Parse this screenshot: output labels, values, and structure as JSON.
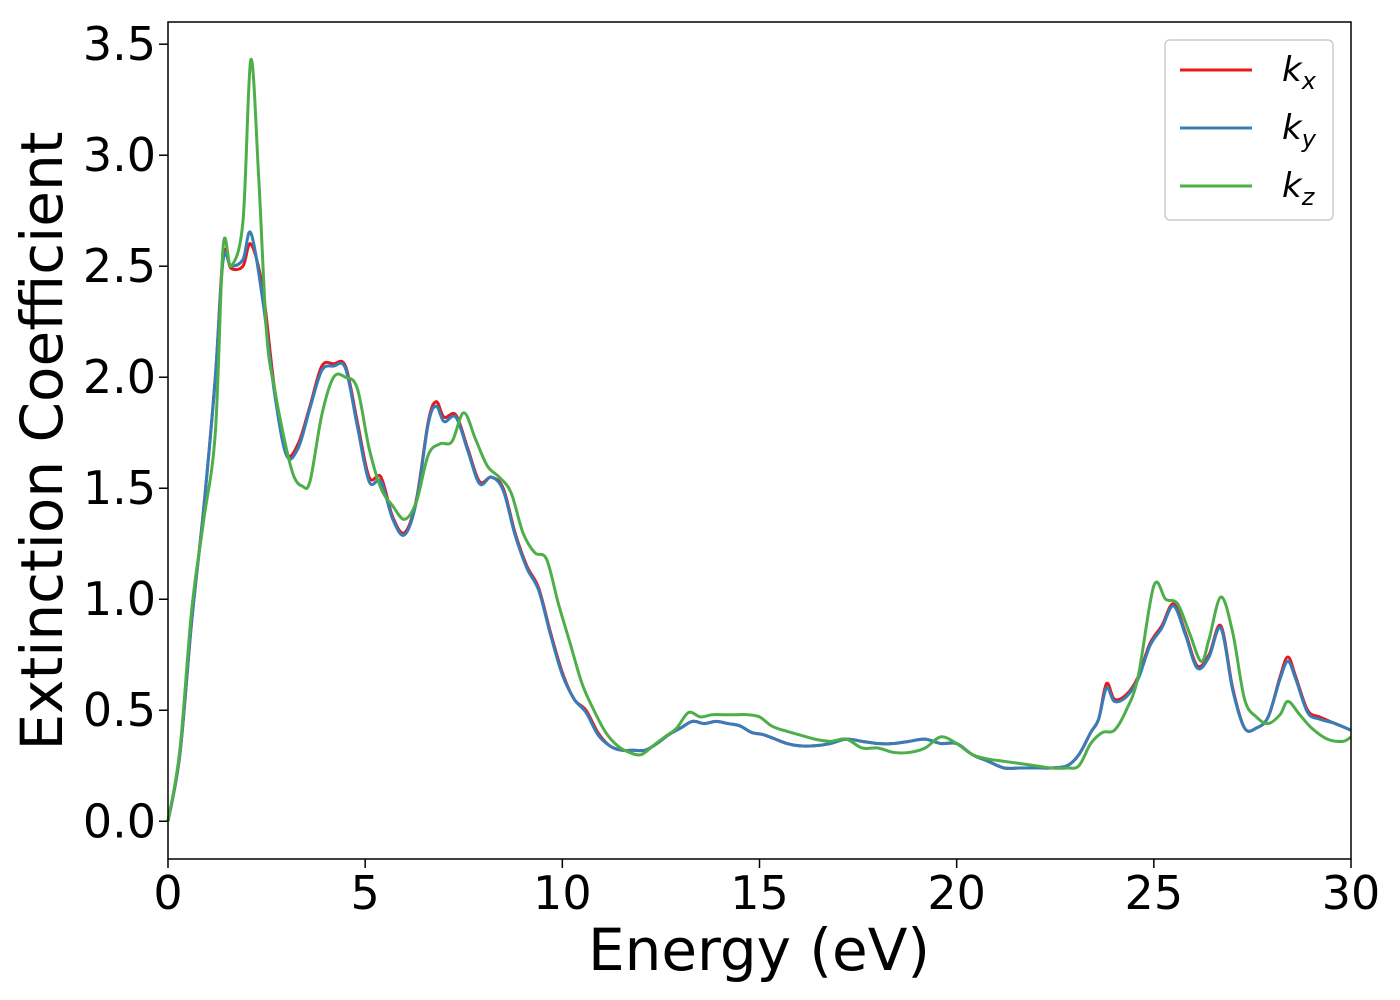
{
  "chart_data": {
    "type": "line",
    "xlabel": "Energy (eV)",
    "ylabel": "Extinction Coefficient",
    "xlim": [
      0,
      30
    ],
    "ylim": [
      -0.17,
      3.6
    ],
    "xticks": [
      "0",
      "5",
      "10",
      "15",
      "20",
      "25",
      "30"
    ],
    "yticks": [
      "0.0",
      "0.5",
      "1.0",
      "1.5",
      "2.0",
      "2.5",
      "3.0",
      "3.5"
    ],
    "grid": false,
    "legend_position": "top-right",
    "series": [
      {
        "name": "k",
        "subscript": "x",
        "color": "#e41a1c",
        "x": [
          0,
          0.3,
          0.6,
          0.9,
          1.2,
          1.4,
          1.6,
          1.9,
          2.1,
          2.4,
          2.7,
          3.0,
          3.3,
          3.6,
          3.9,
          4.2,
          4.5,
          4.8,
          5.1,
          5.4,
          5.7,
          6.0,
          6.3,
          6.6,
          6.8,
          7.0,
          7.3,
          7.6,
          7.9,
          8.2,
          8.5,
          8.8,
          9.1,
          9.4,
          9.7,
          10.0,
          10.3,
          10.6,
          10.9,
          11.2,
          11.5,
          11.8,
          12.1,
          12.4,
          12.7,
          13.0,
          13.3,
          13.6,
          13.9,
          14.2,
          14.5,
          14.8,
          15.1,
          15.4,
          15.7,
          16.0,
          16.4,
          16.8,
          17.2,
          17.6,
          18.0,
          18.4,
          18.8,
          19.2,
          19.6,
          20.0,
          20.4,
          20.8,
          21.2,
          21.6,
          22.0,
          22.4,
          22.8,
          23.1,
          23.4,
          23.6,
          23.8,
          24.0,
          24.3,
          24.6,
          24.9,
          25.2,
          25.5,
          25.8,
          26.1,
          26.4,
          26.7,
          27.0,
          27.3,
          27.6,
          27.9,
          28.2,
          28.4,
          28.6,
          28.9,
          29.2,
          29.6,
          30.0
        ],
        "y": [
          0.0,
          0.3,
          0.9,
          1.4,
          2.0,
          2.55,
          2.49,
          2.5,
          2.6,
          2.4,
          1.95,
          1.66,
          1.7,
          1.87,
          2.05,
          2.06,
          2.05,
          1.8,
          1.55,
          1.55,
          1.37,
          1.3,
          1.45,
          1.8,
          1.89,
          1.82,
          1.83,
          1.68,
          1.53,
          1.55,
          1.5,
          1.3,
          1.15,
          1.05,
          0.85,
          0.67,
          0.55,
          0.5,
          0.4,
          0.34,
          0.32,
          0.32,
          0.32,
          0.35,
          0.39,
          0.42,
          0.45,
          0.44,
          0.45,
          0.44,
          0.43,
          0.4,
          0.39,
          0.37,
          0.35,
          0.34,
          0.34,
          0.35,
          0.37,
          0.36,
          0.35,
          0.35,
          0.36,
          0.37,
          0.35,
          0.35,
          0.3,
          0.27,
          0.24,
          0.24,
          0.24,
          0.24,
          0.25,
          0.3,
          0.4,
          0.46,
          0.62,
          0.55,
          0.57,
          0.65,
          0.8,
          0.88,
          0.98,
          0.85,
          0.7,
          0.75,
          0.88,
          0.6,
          0.42,
          0.42,
          0.47,
          0.65,
          0.74,
          0.65,
          0.5,
          0.47,
          0.44,
          0.41
        ]
      },
      {
        "name": "k",
        "subscript": "y",
        "color": "#377eb8",
        "x": [
          0,
          0.3,
          0.6,
          0.9,
          1.2,
          1.4,
          1.6,
          1.9,
          2.1,
          2.4,
          2.7,
          3.0,
          3.3,
          3.6,
          3.9,
          4.2,
          4.5,
          4.8,
          5.1,
          5.4,
          5.7,
          6.0,
          6.3,
          6.6,
          6.8,
          7.0,
          7.3,
          7.6,
          7.9,
          8.2,
          8.5,
          8.8,
          9.1,
          9.4,
          9.7,
          10.0,
          10.3,
          10.6,
          10.9,
          11.2,
          11.5,
          11.8,
          12.1,
          12.4,
          12.7,
          13.0,
          13.3,
          13.6,
          13.9,
          14.2,
          14.5,
          14.8,
          15.1,
          15.4,
          15.7,
          16.0,
          16.4,
          16.8,
          17.2,
          17.6,
          18.0,
          18.4,
          18.8,
          19.2,
          19.6,
          20.0,
          20.4,
          20.8,
          21.2,
          21.6,
          22.0,
          22.4,
          22.8,
          23.1,
          23.4,
          23.6,
          23.8,
          24.0,
          24.3,
          24.6,
          24.9,
          25.2,
          25.5,
          25.8,
          26.1,
          26.4,
          26.7,
          27.0,
          27.3,
          27.6,
          27.9,
          28.2,
          28.4,
          28.6,
          28.9,
          29.2,
          29.6,
          30.0
        ],
        "y": [
          0.0,
          0.3,
          0.9,
          1.4,
          2.0,
          2.53,
          2.5,
          2.53,
          2.65,
          2.35,
          1.93,
          1.65,
          1.68,
          1.86,
          2.03,
          2.05,
          2.04,
          1.78,
          1.53,
          1.53,
          1.36,
          1.29,
          1.44,
          1.79,
          1.87,
          1.8,
          1.82,
          1.67,
          1.52,
          1.55,
          1.49,
          1.29,
          1.14,
          1.04,
          0.84,
          0.66,
          0.55,
          0.49,
          0.39,
          0.34,
          0.32,
          0.32,
          0.32,
          0.35,
          0.39,
          0.42,
          0.45,
          0.44,
          0.45,
          0.44,
          0.43,
          0.4,
          0.39,
          0.37,
          0.35,
          0.34,
          0.34,
          0.35,
          0.37,
          0.36,
          0.35,
          0.35,
          0.36,
          0.37,
          0.35,
          0.35,
          0.3,
          0.27,
          0.24,
          0.24,
          0.24,
          0.24,
          0.25,
          0.3,
          0.4,
          0.46,
          0.6,
          0.54,
          0.56,
          0.64,
          0.79,
          0.87,
          0.97,
          0.84,
          0.69,
          0.74,
          0.87,
          0.59,
          0.42,
          0.42,
          0.47,
          0.64,
          0.72,
          0.64,
          0.49,
          0.46,
          0.44,
          0.41
        ]
      },
      {
        "name": "k",
        "subscript": "z",
        "color": "#4daf4a",
        "x": [
          0,
          0.3,
          0.6,
          0.9,
          1.2,
          1.4,
          1.6,
          1.9,
          2.1,
          2.3,
          2.5,
          2.7,
          3.0,
          3.2,
          3.4,
          3.6,
          3.9,
          4.2,
          4.5,
          4.8,
          5.1,
          5.4,
          5.7,
          6.0,
          6.3,
          6.6,
          6.9,
          7.2,
          7.5,
          7.8,
          8.1,
          8.4,
          8.7,
          9.0,
          9.3,
          9.6,
          9.9,
          10.2,
          10.5,
          10.8,
          11.1,
          11.4,
          11.7,
          12.0,
          12.3,
          12.6,
          12.9,
          13.2,
          13.5,
          13.8,
          14.1,
          14.4,
          14.7,
          15.0,
          15.3,
          15.6,
          16.0,
          16.4,
          16.8,
          17.2,
          17.6,
          18.0,
          18.4,
          18.8,
          19.2,
          19.6,
          20.0,
          20.4,
          20.8,
          21.2,
          21.6,
          22.0,
          22.4,
          22.8,
          23.1,
          23.4,
          23.7,
          24.0,
          24.3,
          24.6,
          25.0,
          25.3,
          25.6,
          25.9,
          26.2,
          26.4,
          26.7,
          27.0,
          27.3,
          27.6,
          27.9,
          28.2,
          28.4,
          28.7,
          29.0,
          29.4,
          29.8,
          30.0
        ],
        "y": [
          0.0,
          0.32,
          0.95,
          1.35,
          1.75,
          2.59,
          2.5,
          2.7,
          3.43,
          2.9,
          2.2,
          1.95,
          1.68,
          1.55,
          1.51,
          1.53,
          1.83,
          2.0,
          2.0,
          1.95,
          1.68,
          1.5,
          1.42,
          1.36,
          1.44,
          1.65,
          1.7,
          1.71,
          1.84,
          1.72,
          1.6,
          1.55,
          1.48,
          1.3,
          1.21,
          1.18,
          0.98,
          0.8,
          0.62,
          0.5,
          0.4,
          0.34,
          0.31,
          0.3,
          0.34,
          0.38,
          0.42,
          0.49,
          0.47,
          0.48,
          0.48,
          0.48,
          0.48,
          0.47,
          0.43,
          0.41,
          0.39,
          0.37,
          0.36,
          0.37,
          0.33,
          0.33,
          0.31,
          0.31,
          0.33,
          0.38,
          0.35,
          0.3,
          0.28,
          0.27,
          0.26,
          0.25,
          0.24,
          0.24,
          0.25,
          0.35,
          0.4,
          0.41,
          0.5,
          0.65,
          1.06,
          1.0,
          0.98,
          0.85,
          0.72,
          0.82,
          1.01,
          0.85,
          0.55,
          0.47,
          0.44,
          0.48,
          0.54,
          0.48,
          0.42,
          0.37,
          0.36,
          0.38
        ]
      }
    ]
  }
}
